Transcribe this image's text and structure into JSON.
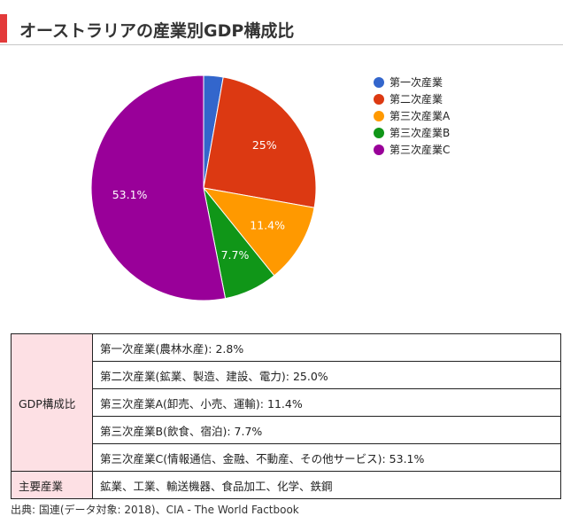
{
  "heading": {
    "title": "オーストラリアの産業別GDP構成比",
    "accent_color": "#e33a3a"
  },
  "chart_data": {
    "type": "pie",
    "title": "",
    "start_angle_deg": 0,
    "direction": "clockwise",
    "legend_position": "right",
    "slices": [
      {
        "label": "第一次産業",
        "value": 2.8,
        "data_label": "",
        "color": "#3366cc"
      },
      {
        "label": "第二次産業",
        "value": 25.0,
        "data_label": "25%",
        "color": "#dc3912"
      },
      {
        "label": "第三次産業A",
        "value": 11.4,
        "data_label": "11.4%",
        "color": "#ff9900"
      },
      {
        "label": "第三次産業B",
        "value": 7.7,
        "data_label": "7.7%",
        "color": "#109618"
      },
      {
        "label": "第三次産業C",
        "value": 53.1,
        "data_label": "53.1%",
        "color": "#990099"
      }
    ]
  },
  "table": {
    "group_label": "GDP構成比",
    "rows": [
      "第一次産業(農林水産): 2.8%",
      "第二次産業(鉱業、製造、建設、電力): 25.0%",
      "第三次産業A(卸売、小売、運輸): 11.4%",
      "第三次産業B(飲食、宿泊): 7.7%",
      "第三次産業C(情報通信、金融、不動産、その他サービス): 53.1%"
    ],
    "industries_label": "主要産業",
    "industries_value": "鉱業、工業、輸送機器、食品加工、化学、鉄鋼",
    "header_bg": "#fde0e4"
  },
  "source": "出典: 国連(データ対象: 2018)、CIA - The World Factbook"
}
